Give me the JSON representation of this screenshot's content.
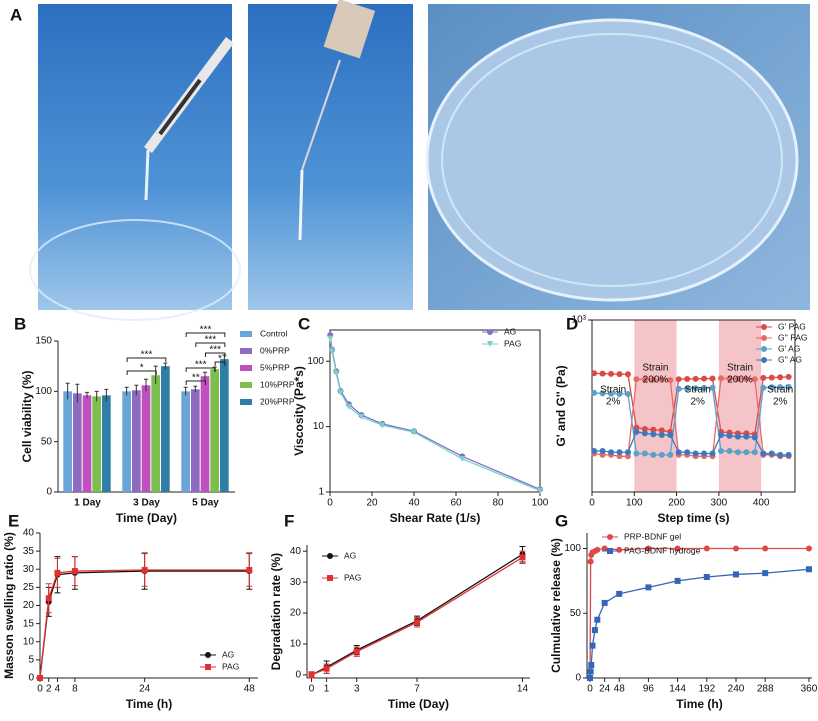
{
  "panel_a": {
    "label": "A"
  },
  "chart_data": [
    {
      "type": "bar",
      "panel": "B",
      "xlabel": "Time (Day)",
      "ylabel": "Cell viability (%)",
      "frame": "axes",
      "categories": [
        "1 Day",
        "3 Day",
        "5 Day"
      ],
      "series": [
        {
          "name": "Control",
          "color": "#6aa5d8",
          "values": [
            100,
            100,
            100
          ],
          "errors": [
            8,
            4,
            4
          ]
        },
        {
          "name": "0%PRP",
          "color": "#8e6bbf",
          "values": [
            98,
            101,
            102
          ],
          "errors": [
            9,
            5,
            3
          ]
        },
        {
          "name": "5%PRP",
          "color": "#c04fc0",
          "values": [
            96,
            106,
            115
          ],
          "errors": [
            3,
            6,
            4
          ]
        },
        {
          "name": "10%PRP",
          "color": "#7cbf4f",
          "values": [
            95,
            116,
            122
          ],
          "errors": [
            5,
            9,
            2
          ]
        },
        {
          "name": "20%PRP",
          "color": "#2e7ea6",
          "values": [
            96,
            125,
            132
          ],
          "errors": [
            6,
            3,
            4
          ]
        }
      ],
      "annotations": [
        "***",
        "*",
        "***",
        "***",
        "***",
        "*",
        "***",
        "**"
      ],
      "ylim": [
        0,
        150
      ],
      "yticks": [
        0,
        50,
        100,
        150
      ]
    },
    {
      "type": "line",
      "panel": "C",
      "xlabel": "Shear Rate (1/s)",
      "ylabel": "Viscosity (Pa*s)",
      "frame": "box",
      "ylog": true,
      "x": [
        0.1,
        1,
        3,
        5,
        9,
        15,
        25,
        40,
        63,
        100
      ],
      "series": [
        {
          "name": "AG",
          "color": "#7b72c4",
          "marker": "circle",
          "values": [
            250,
            150,
            70,
            35,
            22,
            15,
            11,
            8.5,
            3.5,
            1.1
          ]
        },
        {
          "name": "PAG",
          "color": "#7fd0c8",
          "marker": "triangle",
          "values": [
            220,
            140,
            65,
            33,
            20,
            14,
            10.5,
            8.2,
            3.2,
            1.05
          ]
        }
      ],
      "xlim": [
        0,
        100
      ],
      "xticks": [
        0,
        20,
        40,
        60,
        80,
        100
      ],
      "ylim": [
        1,
        300
      ],
      "yticks": [
        1,
        10,
        100
      ]
    },
    {
      "type": "line",
      "panel": "D",
      "xlabel": "Step time (s)",
      "ylabel": "G' and G'' (Pa)",
      "frame": "box",
      "ylog": true,
      "shaded": [
        [
          100,
          200
        ],
        [
          300,
          400
        ]
      ],
      "shade_color": "#f4c4c8",
      "annotations": [
        [
          "Strain",
          "2%"
        ],
        [
          "Strain",
          "200%"
        ],
        [
          "Strain",
          "2%"
        ],
        [
          "Strain",
          "200%"
        ],
        [
          "Strain",
          "2%"
        ]
      ],
      "x": [
        5,
        25,
        45,
        65,
        85,
        105,
        125,
        145,
        165,
        185,
        205,
        225,
        245,
        265,
        285,
        305,
        325,
        345,
        365,
        385,
        405,
        425,
        445,
        465
      ],
      "series": [
        {
          "name": "G' PAG",
          "color": "#d94a4a",
          "marker": "circle",
          "values": [
            240,
            238,
            236,
            235,
            234,
            56,
            54,
            53,
            52,
            50,
            205,
            206,
            207,
            208,
            209,
            50,
            49,
            48,
            48,
            47,
            212,
            214,
            216,
            218
          ]
        },
        {
          "name": "G'' PAG",
          "color": "#e86a6a",
          "marker": "circle",
          "values": [
            28,
            27,
            27,
            26,
            26,
            205,
            203,
            202,
            202,
            200,
            27,
            27,
            26,
            26,
            26,
            210,
            208,
            207,
            206,
            205,
            27,
            27,
            26,
            26
          ]
        },
        {
          "name": "G' AG",
          "color": "#5aa0c8",
          "marker": "circle",
          "values": [
            142,
            140,
            139,
            138,
            138,
            28,
            28,
            27,
            27,
            27,
            158,
            160,
            161,
            162,
            163,
            30,
            30,
            29,
            29,
            29,
            163,
            165,
            166,
            167
          ]
        },
        {
          "name": "G'' AG",
          "color": "#3c78c0",
          "marker": "circle",
          "values": [
            30,
            30,
            29,
            29,
            29,
            50,
            48,
            47,
            46,
            46,
            29,
            29,
            28,
            28,
            28,
            46,
            45,
            44,
            44,
            43,
            28,
            28,
            27,
            27
          ]
        }
      ],
      "xlim": [
        0,
        480
      ],
      "xticks": [
        0,
        100,
        200,
        300,
        400
      ],
      "ylim": [
        10,
        1000
      ],
      "yticks": [
        {
          "value": 1000,
          "label": "10³"
        }
      ]
    },
    {
      "type": "line",
      "panel": "E",
      "xlabel": "Time (h)",
      "ylabel": "Masson swelling ratio (%)",
      "frame": "axes",
      "x": [
        0,
        2,
        4,
        8,
        24,
        48
      ],
      "series": [
        {
          "name": "AG",
          "color": "#111111",
          "marker": "circle",
          "values": [
            0,
            21,
            28.5,
            29,
            29.5,
            29.5
          ],
          "errors": [
            0,
            4,
            5,
            4.5,
            5,
            5
          ]
        },
        {
          "name": "PAG",
          "color": "#e03030",
          "marker": "square",
          "values": [
            0,
            22,
            29,
            29.5,
            29.8,
            29.8
          ],
          "errors": [
            0,
            4,
            4,
            4,
            4.5,
            4.5
          ]
        }
      ],
      "xlim": [
        0,
        50
      ],
      "xticks": [
        0,
        2,
        4,
        8,
        24,
        48
      ],
      "ylim": [
        0,
        40
      ],
      "yticks": [
        0,
        5,
        10,
        15,
        20,
        25,
        30,
        35,
        40
      ]
    },
    {
      "type": "line",
      "panel": "F",
      "xlabel": "Time (Day)",
      "ylabel": "Degradation rate (%)",
      "frame": "axes",
      "x": [
        0,
        1,
        3,
        7,
        14
      ],
      "series": [
        {
          "name": "AG",
          "color": "#111111",
          "marker": "circle",
          "values": [
            0,
            2.5,
            8,
            17.5,
            39
          ],
          "errors": [
            1,
            2,
            1.5,
            1.5,
            2.5
          ]
        },
        {
          "name": "PAG",
          "color": "#e03030",
          "marker": "square",
          "values": [
            0,
            2,
            7.5,
            17,
            38
          ],
          "errors": [
            1,
            1.5,
            1.5,
            1.5,
            2
          ]
        }
      ],
      "xlim": [
        -0.3,
        14.5
      ],
      "xticks": [
        0,
        1,
        3,
        7,
        14
      ],
      "ylim": [
        -1,
        42
      ],
      "yticks": [
        0,
        10,
        20,
        30,
        40
      ]
    },
    {
      "type": "line",
      "panel": "G",
      "xlabel": "Time (h)",
      "ylabel": "Culmulative release (%)",
      "frame": "axes",
      "x": [
        0,
        1,
        2,
        4,
        8,
        12,
        24,
        48,
        96,
        144,
        192,
        240,
        288,
        360
      ],
      "series": [
        {
          "name": "PRP-BDNF gel",
          "color": "#e04848",
          "marker": "circle",
          "values": [
            0,
            90,
            95,
            97,
            98,
            99,
            100,
            99,
            100,
            100,
            100,
            100,
            100,
            100
          ]
        },
        {
          "name": "PAG-BDNF hydroge",
          "color": "#3466b8",
          "marker": "square",
          "values": [
            0,
            5,
            10,
            25,
            37,
            45,
            58,
            65,
            70,
            75,
            78,
            80,
            81,
            84
          ]
        }
      ],
      "xlim": [
        -5,
        365
      ],
      "xticks": [
        0,
        24,
        48,
        96,
        144,
        192,
        240,
        288,
        360
      ],
      "ylim": [
        0,
        112
      ],
      "yticks": [
        0,
        50,
        100
      ]
    }
  ]
}
